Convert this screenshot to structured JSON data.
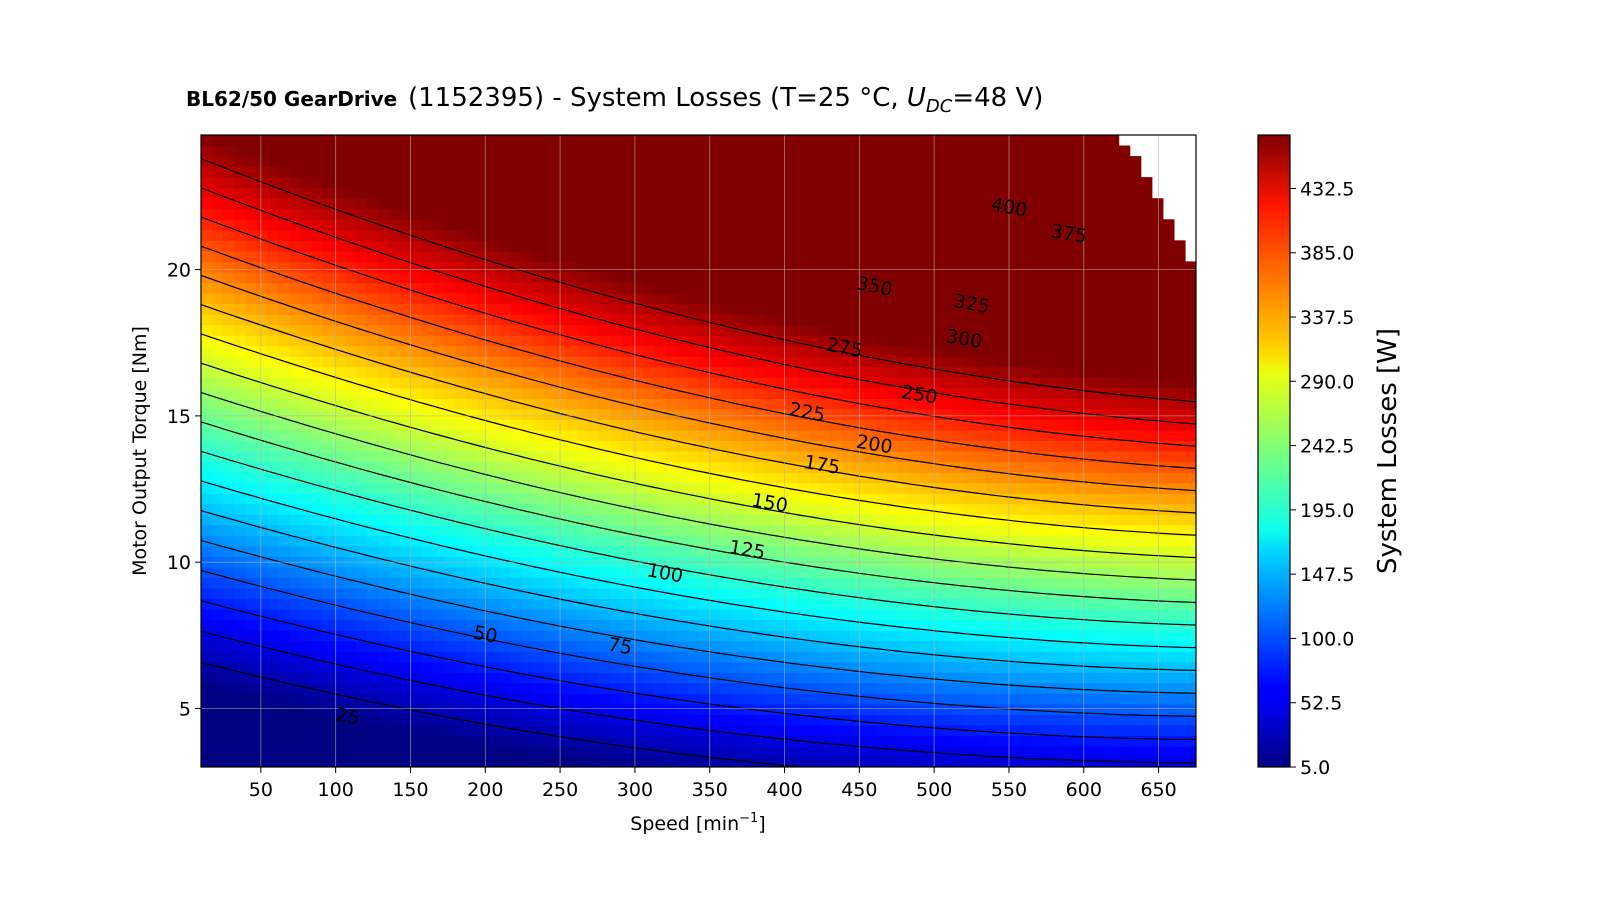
{
  "chart_data": {
    "type": "heatmap",
    "subtype": "filled-contour",
    "title_bold": "BL62/50 GearDrive",
    "title_text": "(1152395) - System Losses (T=25 °C, ",
    "title_u": "U",
    "title_sub": "DC",
    "title_end": "=48 V)",
    "xlabel": "Speed [min",
    "xlabel_sup": "−1",
    "xlabel_end": "]",
    "ylabel": "Motor Output Torque [Nm]",
    "colorbar_label": "System Losses [W]",
    "colormap": "jet",
    "xlim": [
      10,
      675
    ],
    "ylim": [
      3,
      24.6
    ],
    "xticks": [
      50,
      100,
      150,
      200,
      250,
      300,
      350,
      400,
      450,
      500,
      550,
      600,
      650
    ],
    "yticks": [
      5,
      10,
      15,
      20
    ],
    "zlim": [
      5.0,
      472
    ],
    "colorbar_ticks": [
      "5.0",
      "52.5",
      "100.0",
      "147.5",
      "195.0",
      "242.5",
      "290.0",
      "337.5",
      "385.0",
      "432.5"
    ],
    "colorbar_tick_values": [
      5.0,
      52.5,
      100.0,
      147.5,
      195.0,
      242.5,
      290.0,
      337.5,
      385.0,
      432.5
    ],
    "grid": true,
    "contour_levels": [
      25,
      50,
      75,
      100,
      125,
      150,
      175,
      200,
      225,
      250,
      275,
      300,
      325,
      350,
      375,
      400,
      425,
      450
    ],
    "contour_labels": [
      {
        "text": "25",
        "x": 108,
        "y": 4.7
      },
      {
        "text": "50",
        "x": 200,
        "y": 7.5
      },
      {
        "text": "75",
        "x": 290,
        "y": 7.1
      },
      {
        "text": "100",
        "x": 320,
        "y": 9.6
      },
      {
        "text": "125",
        "x": 375,
        "y": 10.4
      },
      {
        "text": "150",
        "x": 390,
        "y": 12.0
      },
      {
        "text": "175",
        "x": 425,
        "y": 13.3
      },
      {
        "text": "200",
        "x": 460,
        "y": 14.0
      },
      {
        "text": "225",
        "x": 415,
        "y": 15.1
      },
      {
        "text": "250",
        "x": 490,
        "y": 15.7
      },
      {
        "text": "275",
        "x": 440,
        "y": 17.3
      },
      {
        "text": "300",
        "x": 520,
        "y": 17.6
      },
      {
        "text": "325",
        "x": 525,
        "y": 18.8
      },
      {
        "text": "350",
        "x": 460,
        "y": 19.4
      },
      {
        "text": "375",
        "x": 590,
        "y": 21.2
      },
      {
        "text": "400",
        "x": 550,
        "y": 22.1
      }
    ]
  }
}
